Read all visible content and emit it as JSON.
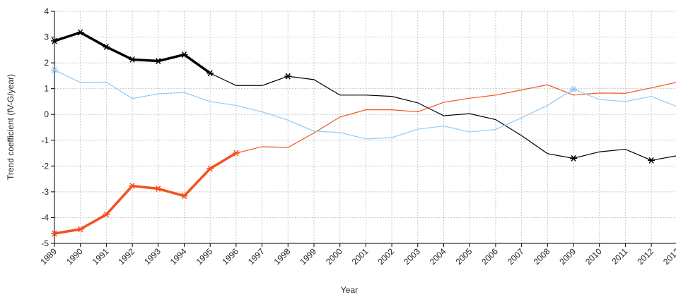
{
  "chart_data": {
    "type": "line",
    "x_label": "Year",
    "y_label": "Trend coefficient (fV-G/year)",
    "categories": [
      "1989",
      "1990",
      "1991",
      "1992",
      "1993",
      "1994",
      "1995",
      "1996",
      "1997",
      "1998",
      "1999",
      "2000",
      "2001",
      "2002",
      "2003",
      "2004",
      "2005",
      "2006",
      "2007",
      "2008",
      "2009",
      "2010",
      "2011",
      "2012",
      "2013"
    ],
    "series": [
      {
        "color": "#000000",
        "thick_through": 6,
        "markers": [
          0,
          1,
          2,
          3,
          4,
          5,
          6,
          9,
          20,
          23
        ],
        "values": [
          2.85,
          3.18,
          2.62,
          2.13,
          2.07,
          2.32,
          1.6,
          1.12,
          1.12,
          1.48,
          1.35,
          0.75,
          0.75,
          0.7,
          0.45,
          -0.05,
          0.03,
          -0.2,
          -0.82,
          -1.52,
          -1.7,
          -1.45,
          -1.35,
          -1.78,
          -1.6
        ]
      },
      {
        "color": "#f4511e",
        "thick_through": 7,
        "markers": [
          0,
          1,
          2,
          3,
          4,
          5,
          6,
          7
        ],
        "values": [
          -4.62,
          -4.45,
          -3.88,
          -2.77,
          -2.88,
          -3.16,
          -2.1,
          -1.5,
          -1.25,
          -1.28,
          -0.72,
          -0.1,
          0.18,
          0.18,
          0.1,
          0.47,
          0.63,
          0.75,
          0.95,
          1.15,
          0.75,
          0.83,
          0.82,
          1.03,
          1.25
        ]
      },
      {
        "color": "#90caf9",
        "thick_through": 0,
        "markers": [
          0,
          20
        ],
        "values": [
          1.72,
          1.24,
          1.25,
          0.62,
          0.8,
          0.85,
          0.5,
          0.35,
          0.1,
          -0.22,
          -0.65,
          -0.7,
          -0.95,
          -0.9,
          -0.57,
          -0.45,
          -0.68,
          -0.58,
          -0.13,
          0.35,
          0.98,
          0.58,
          0.5,
          0.7,
          0.3
        ]
      }
    ],
    "ylim": [
      -5,
      4
    ],
    "yticks": [
      -5,
      -4,
      -3,
      -2,
      -1,
      0,
      1,
      2,
      3,
      4
    ],
    "grid": true
  }
}
